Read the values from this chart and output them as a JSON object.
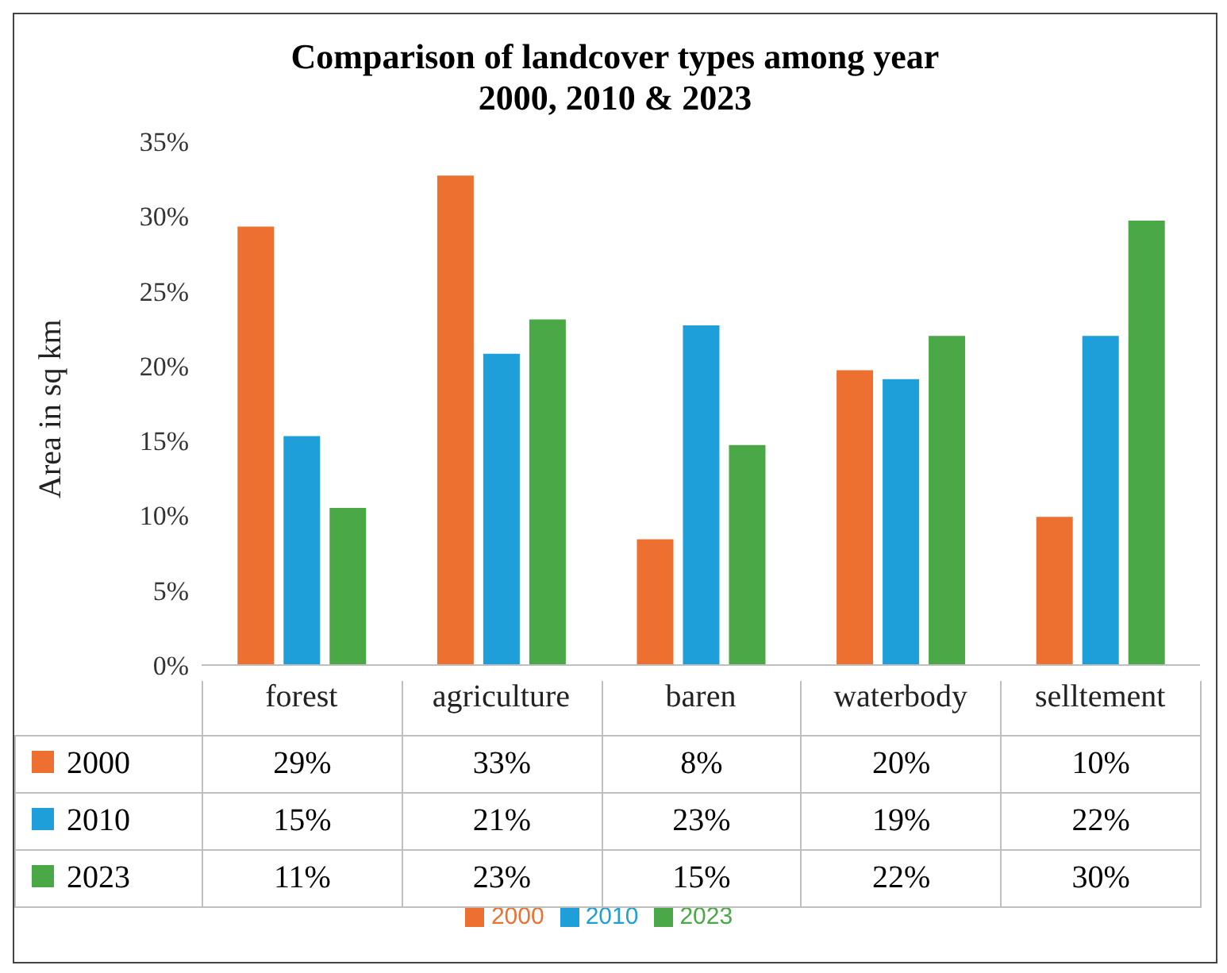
{
  "chart_data": {
    "type": "bar",
    "title": "Comparison of landcover types among year 2000, 2010 & 2023",
    "ylabel": "Area in sq km",
    "categories": [
      "forest",
      "agriculture",
      "baren",
      "waterbody",
      "selltement"
    ],
    "series": [
      {
        "name": "2000",
        "color": "#ed7031",
        "values": [
          29.3,
          32.7,
          8.4,
          19.7,
          9.9
        ],
        "value_labels": [
          "29%",
          "33%",
          "8%",
          "20%",
          "10%"
        ]
      },
      {
        "name": "2010",
        "color": "#1f9fd9",
        "values": [
          15.3,
          20.8,
          22.7,
          19.1,
          22.0
        ],
        "value_labels": [
          "15%",
          "21%",
          "23%",
          "19%",
          "22%"
        ]
      },
      {
        "name": "2023",
        "color": "#4aa946",
        "values": [
          10.5,
          23.1,
          14.7,
          22.0,
          29.7
        ],
        "value_labels": [
          "11%",
          "23%",
          "15%",
          "22%",
          "30%"
        ]
      }
    ],
    "ylim": [
      0,
      35
    ],
    "yticks": [
      {
        "value": 0,
        "label": "0%"
      },
      {
        "value": 5,
        "label": "5%"
      },
      {
        "value": 10,
        "label": "10%"
      },
      {
        "value": 15,
        "label": "15%"
      },
      {
        "value": 20,
        "label": "20%"
      },
      {
        "value": 25,
        "label": "25%"
      },
      {
        "value": 30,
        "label": "30%"
      },
      {
        "value": 35,
        "label": "35%"
      }
    ],
    "legend": "bottom"
  }
}
